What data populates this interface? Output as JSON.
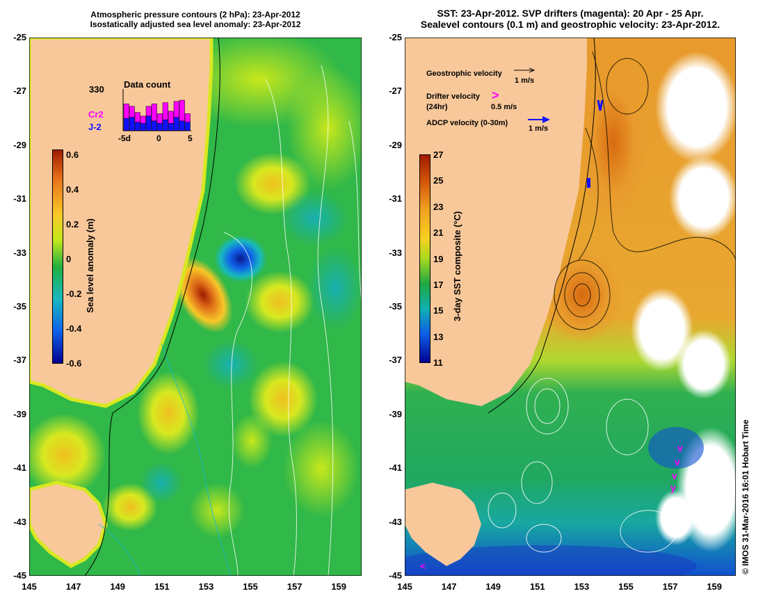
{
  "left_panel": {
    "title_line1": "Atmospheric pressure contours (2 hPa): 23-Apr-2012",
    "title_line2": "Isostatically adjusted sea level anomaly: 23-Apr-2012",
    "colorbar_label": "Sea level anomaly (m)",
    "colorbar_ticks": [
      "0.6",
      "0.4",
      "0.2",
      "0",
      "-0.2",
      "-0.4",
      "-0.6"
    ],
    "colorbar_colors": [
      "#a01a00",
      "#e8741a",
      "#f8c828",
      "#c8e81c",
      "#20b040",
      "#18b8c0",
      "#1060e8",
      "#000090"
    ],
    "inset": {
      "title": "Data count",
      "max_label": "330",
      "series1_label": "Cr2",
      "series2_label": "J-2",
      "series1_color": "#ff00ff",
      "series2_color": "#1010ff",
      "x_ticks": [
        "-5d",
        "0",
        "5"
      ],
      "totals": [
        220,
        200,
        150,
        120,
        200,
        220,
        140,
        230,
        160,
        240,
        250,
        140
      ],
      "j2_counts": [
        100,
        110,
        70,
        60,
        120,
        80,
        60,
        90,
        60,
        110,
        80,
        70
      ]
    }
  },
  "right_panel": {
    "title_line1": "SST: 23-Apr-2012. SVP drifters (magenta): 20 Apr - 25 Apr.",
    "title_line2": "Sealevel contours (0.1 m) and geostrophic velocity: 23-Apr-2012.",
    "colorbar_label": "3-day SST composite (°C)",
    "colorbar_ticks": [
      "27",
      "25",
      "23",
      "21",
      "19",
      "17",
      "15",
      "13",
      "11"
    ],
    "colorbar_colors": [
      "#a01a00",
      "#d85a0c",
      "#f0a020",
      "#f8d020",
      "#a8d820",
      "#20a840",
      "#10b0b0",
      "#1060e8",
      "#000090"
    ],
    "legend": {
      "geo_label": "Geostrophic velocity",
      "geo_scale": "1 m/s",
      "drifter_label": "Drifter velocity",
      "drifter_sub": "(24hr)",
      "drifter_scale": "0.5 m/s",
      "drifter_symbol": ">",
      "adcp_label": "ADCP velocity (0-30m)",
      "adcp_scale": "1 m/s"
    }
  },
  "axes": {
    "lat_ticks": [
      "-25",
      "-27",
      "-29",
      "-31",
      "-33",
      "-35",
      "-37",
      "-39",
      "-41",
      "-43",
      "-45"
    ],
    "lon_ticks": [
      "145",
      "147",
      "149",
      "151",
      "153",
      "155",
      "157",
      "159"
    ],
    "lat_range": [
      -45,
      -25
    ],
    "lon_range": [
      145,
      160
    ]
  },
  "colors": {
    "land": "#f8c89a",
    "sea_green": "#30b848",
    "sea_yellow": "#d8e820",
    "sst_orange": "#e89a2c",
    "sst_green": "#30b050",
    "sst_teal": "#18a8a0",
    "sst_blue": "#1050d0",
    "drifter_magenta": "#ff00ff"
  },
  "credit": "© IMOS 31-Mar-2016 16:01 Hobart Time"
}
